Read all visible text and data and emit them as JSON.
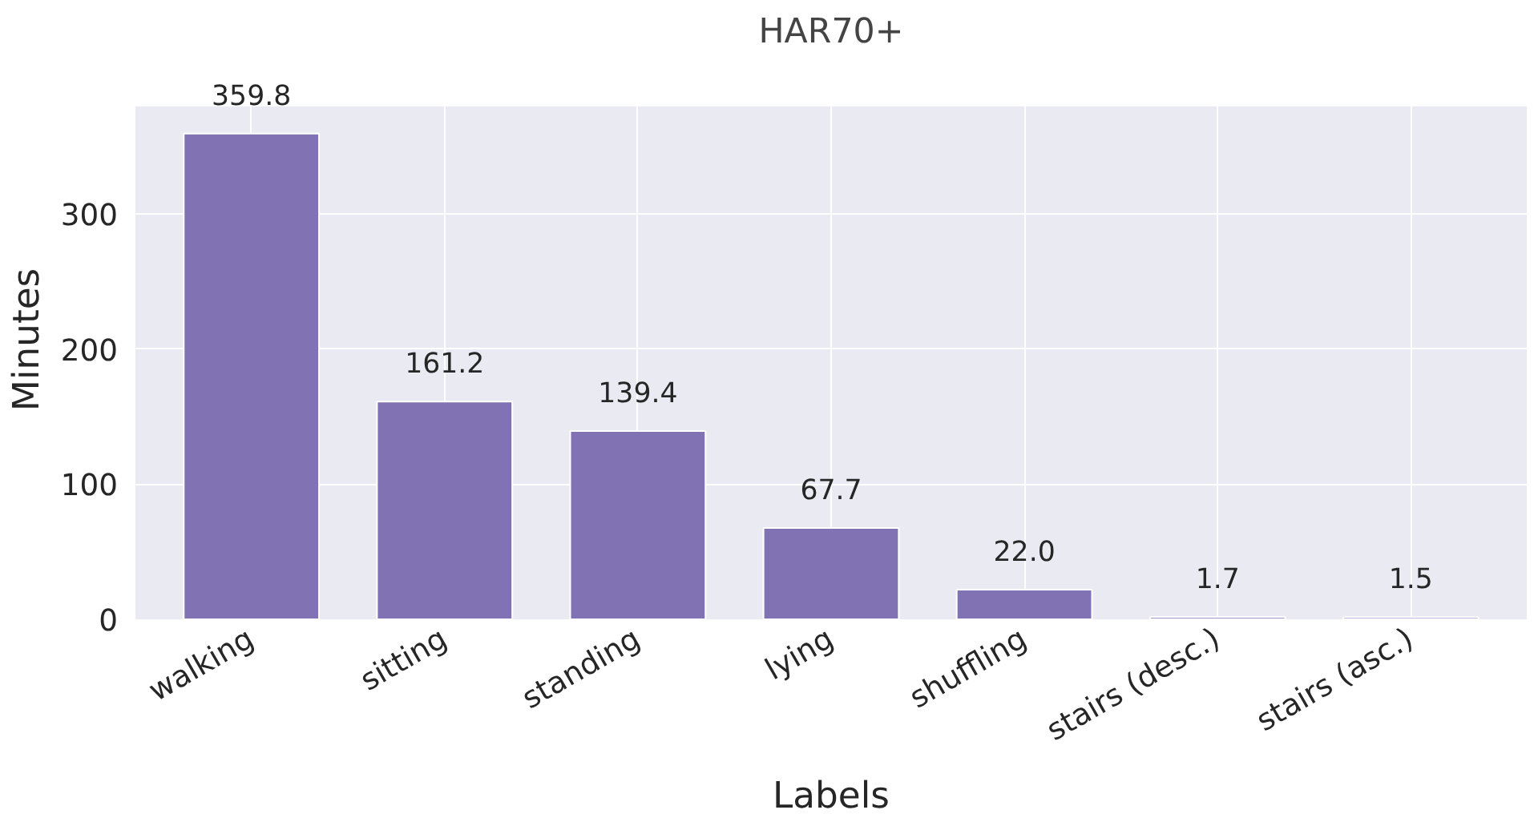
{
  "chart_data": {
    "type": "bar",
    "title": "HAR70+",
    "xlabel": "Labels",
    "ylabel": "Minutes",
    "categories": [
      "walking",
      "sitting",
      "standing",
      "lying",
      "shuffling",
      "stairs (desc.)",
      "stairs (asc.)"
    ],
    "values": [
      359.8,
      161.2,
      139.4,
      67.7,
      22.0,
      1.7,
      1.5
    ],
    "value_labels": [
      "359.8",
      "161.2",
      "139.4",
      "67.7",
      "22.0",
      "1.7",
      "1.5"
    ],
    "color": "#8172b3",
    "ylim": [
      0,
      380
    ],
    "yticks": [
      0,
      100,
      200,
      300
    ],
    "grid": true
  }
}
